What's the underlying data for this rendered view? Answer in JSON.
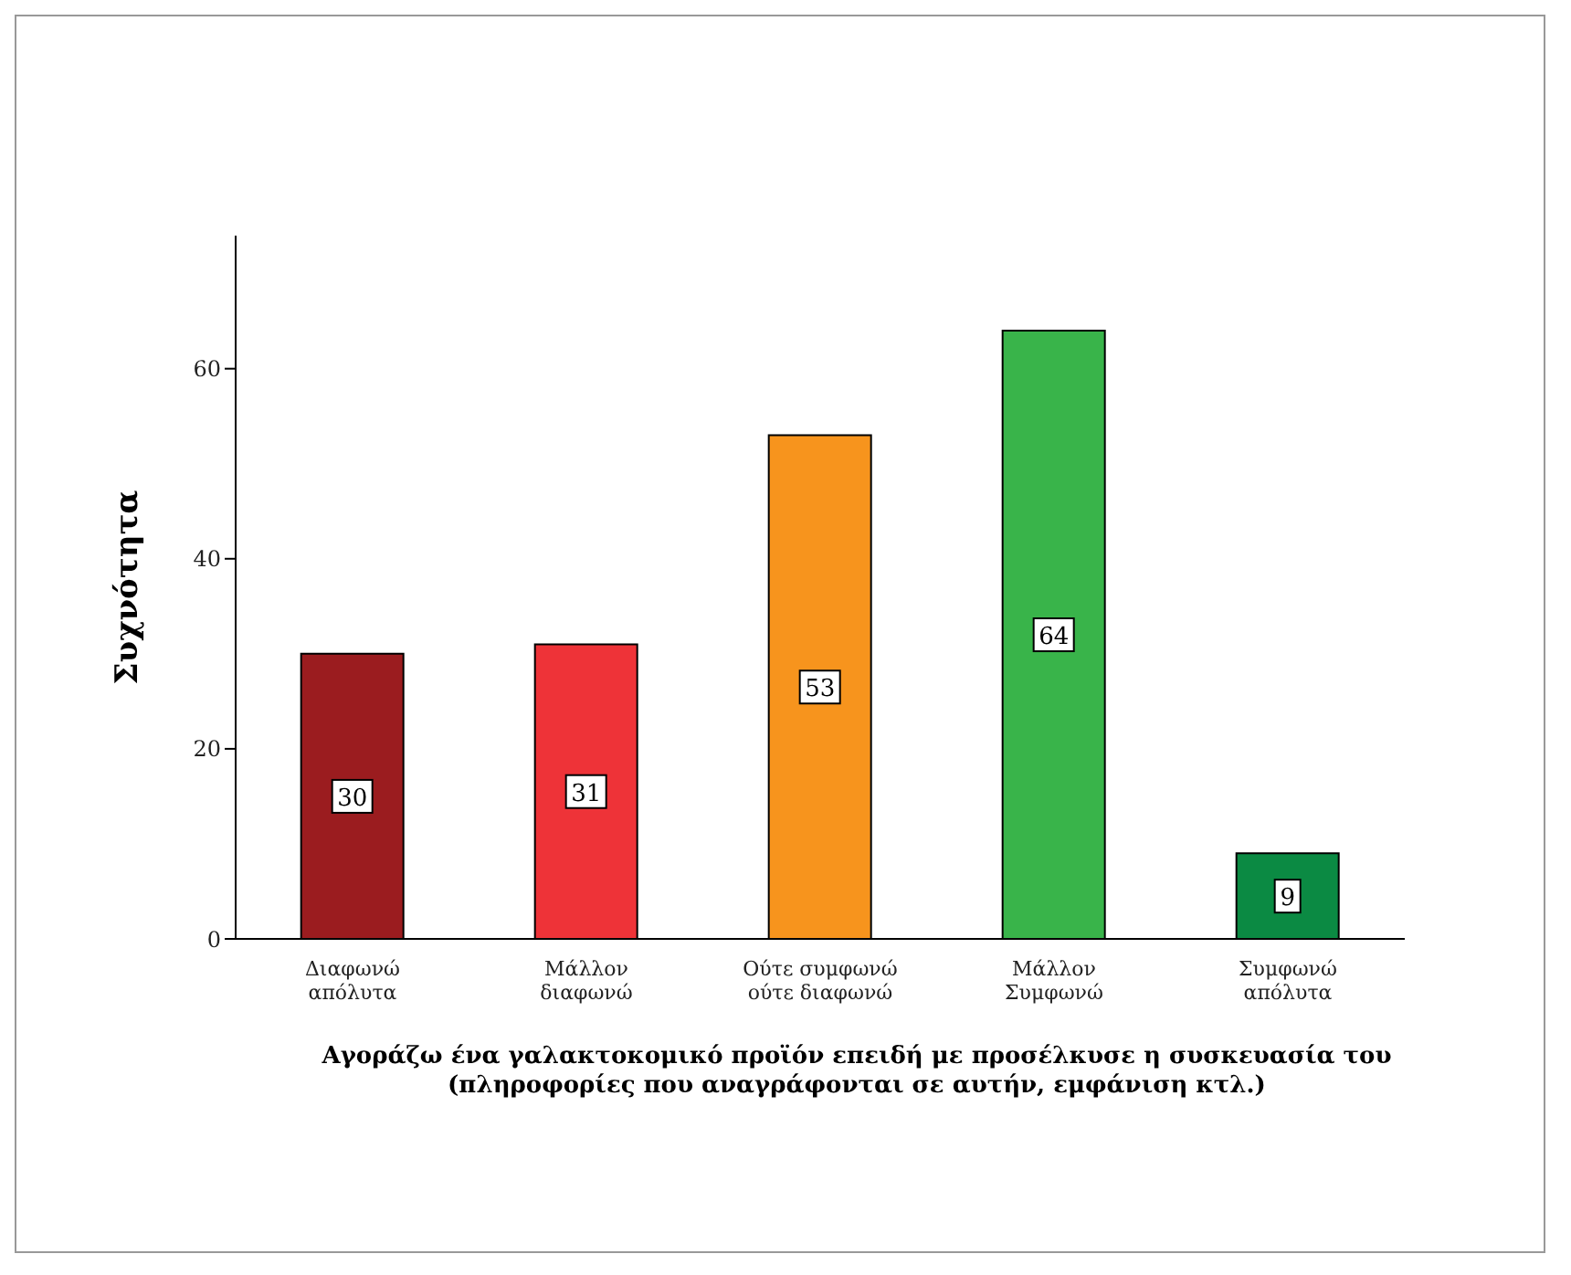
{
  "chart_data": {
    "type": "bar",
    "categories": [
      "Διαφωνώ απόλυτα",
      "Μάλλον διαφωνώ",
      "Ούτε συμφωνώ ούτε διαφωνώ",
      "Μάλλον Συμφωνώ",
      "Συμφωνώ απόλυτα"
    ],
    "values": [
      30,
      31,
      53,
      64,
      9
    ],
    "colors": [
      "#9b1c1f",
      "#ee3338",
      "#f7941d",
      "#39b44a",
      "#0b8a43"
    ],
    "xlabel": "Αγοράζω ένα γαλακτοκομικό προϊόν επειδή με προσέλκυσε η συσκευασία του (πληροφορίες που αναγράφονται σε αυτήν, εμφάνιση κτλ.)",
    "ylabel": "Συχνότητα",
    "ylim": [
      0,
      74
    ],
    "yticks": [
      0,
      20,
      40,
      60
    ],
    "data_labels": true,
    "grid": false
  }
}
